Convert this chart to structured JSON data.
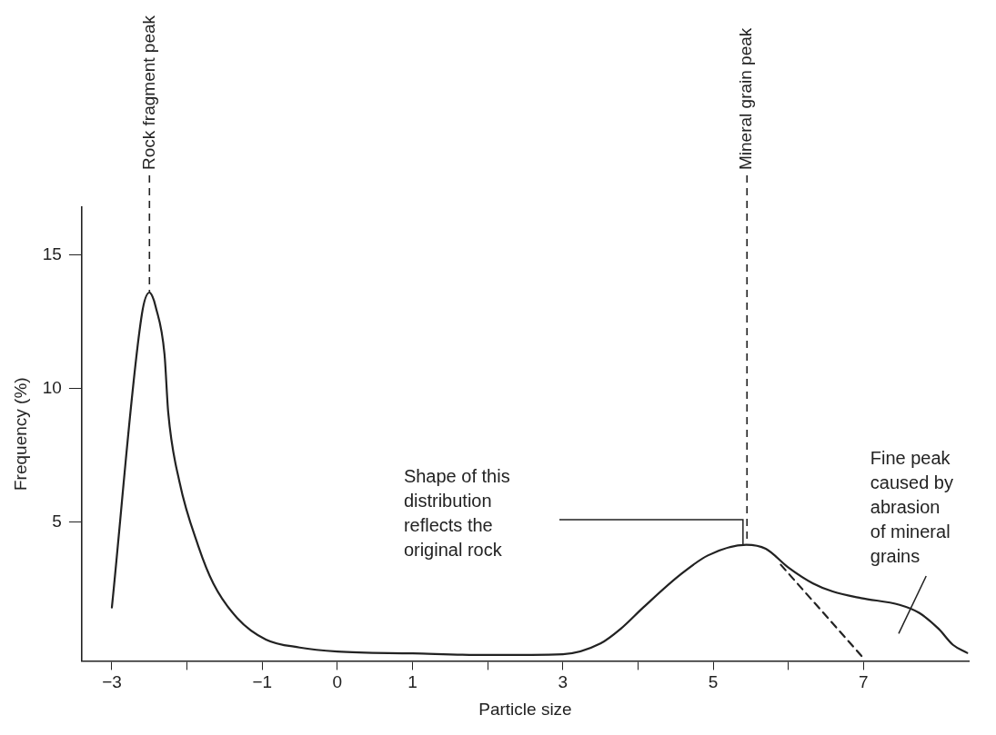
{
  "chart_data": {
    "type": "line",
    "xlabel": "Particle size",
    "ylabel": "Frequency (%)",
    "xlim": [
      -3.4,
      8.4
    ],
    "xticks": [
      -3,
      {
        "value": -2,
        "label": null
      },
      -1,
      0,
      1,
      {
        "value": 2,
        "label": null
      },
      3,
      {
        "value": 4,
        "label": null
      },
      5,
      {
        "value": 6,
        "label": null
      },
      7
    ],
    "ylim": [
      -0.2,
      16.8
    ],
    "yticks": [
      5,
      10,
      15
    ],
    "grid": false,
    "legend": false,
    "marker": "none",
    "line_style": "solid",
    "series": [
      {
        "color": "#222222",
        "x": [
          -3,
          -2.6,
          -2.5,
          -2.46,
          -2.42,
          -2.3,
          -2.25,
          -2.1,
          -1.85,
          -1.65,
          -1.33,
          -0.95,
          -0.5,
          0,
          1,
          2,
          3,
          3.5,
          3.77,
          4.07,
          4.55,
          4.93,
          5.44,
          5.7,
          6.0,
          6.33,
          6.59,
          6.97,
          7.48,
          7.74,
          8.0,
          8.19,
          8.38
        ],
        "values": [
          1.8,
          12.8,
          13.6,
          13.45,
          13.1,
          11.3,
          9.1,
          6.5,
          4.1,
          2.7,
          1.4,
          0.6,
          0.3,
          0.15,
          0.08,
          0.02,
          0.05,
          0.45,
          1.0,
          1.8,
          3.0,
          3.75,
          4.15,
          4.0,
          3.3,
          2.7,
          2.4,
          2.15,
          1.9,
          1.6,
          1.0,
          0.4,
          0.1
        ]
      },
      {
        "type": "line",
        "line_style": "dashed",
        "color": "#222222",
        "x": [
          5.9,
          7.0
        ],
        "values": [
          3.4,
          -0.1
        ]
      }
    ],
    "ref_lines": [
      {
        "axis": "x",
        "value": -2.5,
        "label": "Rock fragment peak",
        "line_style": "dashed"
      },
      {
        "axis": "x",
        "value": 5.45,
        "label": "Mineral grain peak",
        "line_style": "dashed"
      }
    ],
    "annotations": [
      "Shape of this\ndistribution\nreflects the\noriginal rock",
      "Fine peak\ncaused by\nabrasion\nof mineral\ngrains"
    ]
  }
}
